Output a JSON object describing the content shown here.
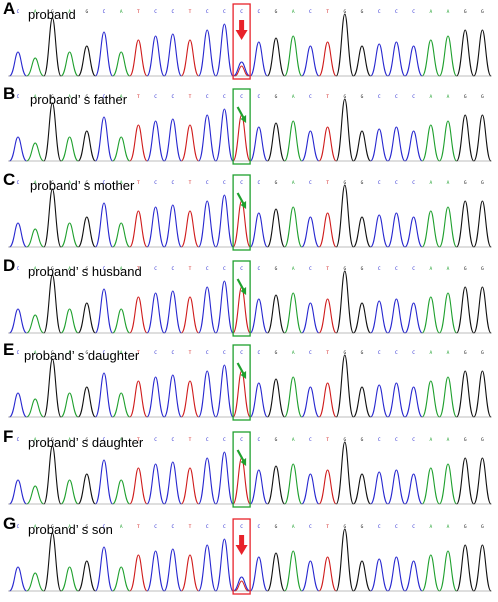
{
  "figure": {
    "sequence": [
      "C",
      "A",
      "G",
      "A",
      "G",
      "C",
      "A",
      "T",
      "C",
      "C",
      "T",
      "C",
      "C",
      "C",
      "C",
      "G",
      "A",
      "C",
      "T",
      "G",
      "G",
      "C",
      "C",
      "C",
      "A",
      "A",
      "G",
      "G"
    ],
    "base_colors": {
      "A": "#1fa02e",
      "C": "#2828d0",
      "G": "#111111",
      "T": "#d01c1c"
    },
    "highlight_position": 13,
    "panels": [
      {
        "letter": "A",
        "label": "proband",
        "box_color": "#e8222a",
        "arrow_color": "#e8222a",
        "arrow_style": "block",
        "variant": "heterozygous"
      },
      {
        "letter": "B",
        "label": "proband’ s father",
        "box_color": "#1fa02e",
        "arrow_color": "#1fa02e",
        "arrow_style": "diagonal",
        "variant": "wild-type"
      },
      {
        "letter": "C",
        "label": "proband’ s mother",
        "box_color": "#1fa02e",
        "arrow_color": "#1fa02e",
        "arrow_style": "diagonal",
        "variant": "wild-type"
      },
      {
        "letter": "D",
        "label": "proband’ s husband",
        "box_color": "#1fa02e",
        "arrow_color": "#1fa02e",
        "arrow_style": "diagonal",
        "variant": "wild-type"
      },
      {
        "letter": "E",
        "label": "proband’ s daughter",
        "box_color": "#1fa02e",
        "arrow_color": "#1fa02e",
        "arrow_style": "diagonal",
        "variant": "wild-type"
      },
      {
        "letter": "F",
        "label": "proband’ s daughter",
        "box_color": "#1fa02e",
        "arrow_color": "#1fa02e",
        "arrow_style": "diagonal",
        "variant": "wild-type"
      },
      {
        "letter": "G",
        "label": "proband’ s son",
        "box_color": "#e8222a",
        "arrow_color": "#e8222a",
        "arrow_style": "block",
        "variant": "heterozygous"
      }
    ]
  }
}
